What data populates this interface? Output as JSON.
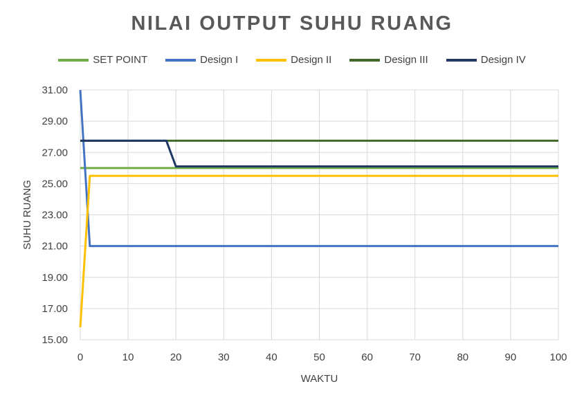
{
  "chart_data": {
    "type": "line",
    "title": "NILAI OUTPUT SUHU RUANG",
    "xlabel": "WAKTU",
    "ylabel": "SUHU RUANG",
    "xlim": [
      0,
      100
    ],
    "ylim": [
      15,
      31
    ],
    "xticks": [
      "0",
      "10",
      "20",
      "30",
      "40",
      "50",
      "60",
      "70",
      "80",
      "90",
      "100"
    ],
    "yticks": [
      "15.00",
      "17.00",
      "19.00",
      "21.00",
      "23.00",
      "25.00",
      "27.00",
      "29.00",
      "31.00"
    ],
    "grid": true,
    "legend_position": "top",
    "series": [
      {
        "name": "SET POINT",
        "color": "#70ad47",
        "x": [
          0,
          100
        ],
        "y": [
          26.0,
          26.0
        ]
      },
      {
        "name": "Design I",
        "color": "#4472c4",
        "x": [
          0,
          2,
          100
        ],
        "y": [
          31.0,
          21.0,
          21.0
        ]
      },
      {
        "name": "Design II",
        "color": "#ffc000",
        "x": [
          0,
          2,
          100
        ],
        "y": [
          15.8,
          25.5,
          25.5
        ]
      },
      {
        "name": "Design III",
        "color": "#43682b",
        "x": [
          0,
          100
        ],
        "y": [
          27.75,
          27.75
        ]
      },
      {
        "name": "Design IV",
        "color": "#203864",
        "x": [
          0,
          18,
          20,
          100
        ],
        "y": [
          27.75,
          27.75,
          26.1,
          26.1
        ]
      }
    ]
  }
}
